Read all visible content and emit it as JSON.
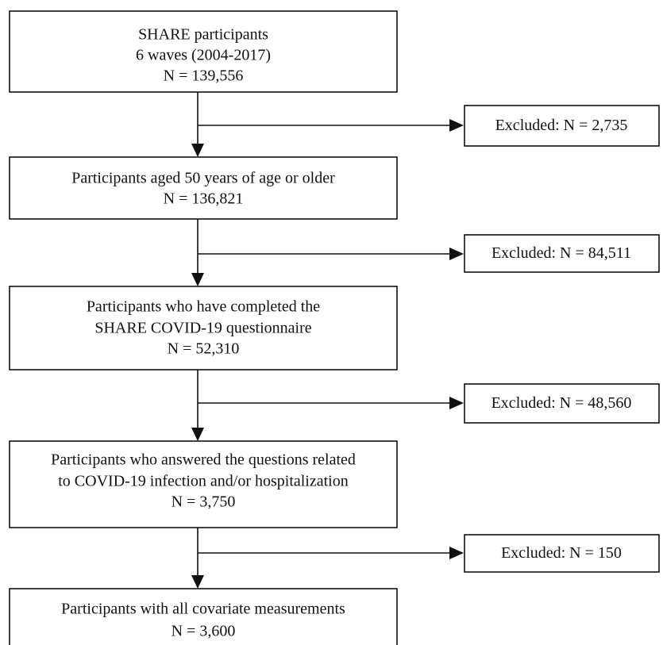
{
  "nodes": [
    {
      "lines": [
        "SHARE participants",
        "6 waves (2004-2017)",
        "N = 139,556"
      ]
    },
    {
      "lines": [
        "Participants aged 50 years of age or older",
        "N = 136,821"
      ]
    },
    {
      "lines": [
        "Participants who have completed the",
        "SHARE COVID-19 questionnaire",
        "N = 52,310"
      ]
    },
    {
      "lines": [
        "Participants who answered the questions related",
        "to COVID-19 infection and/or hospitalization",
        "N = 3,750"
      ]
    },
    {
      "lines": [
        "Participants with all covariate measurements",
        "N = 3,600"
      ]
    }
  ],
  "exclusions": [
    "Excluded: N = 2,735",
    "Excluded: N = 84,511",
    "Excluded: N = 48,560",
    "Excluded: N = 150"
  ]
}
